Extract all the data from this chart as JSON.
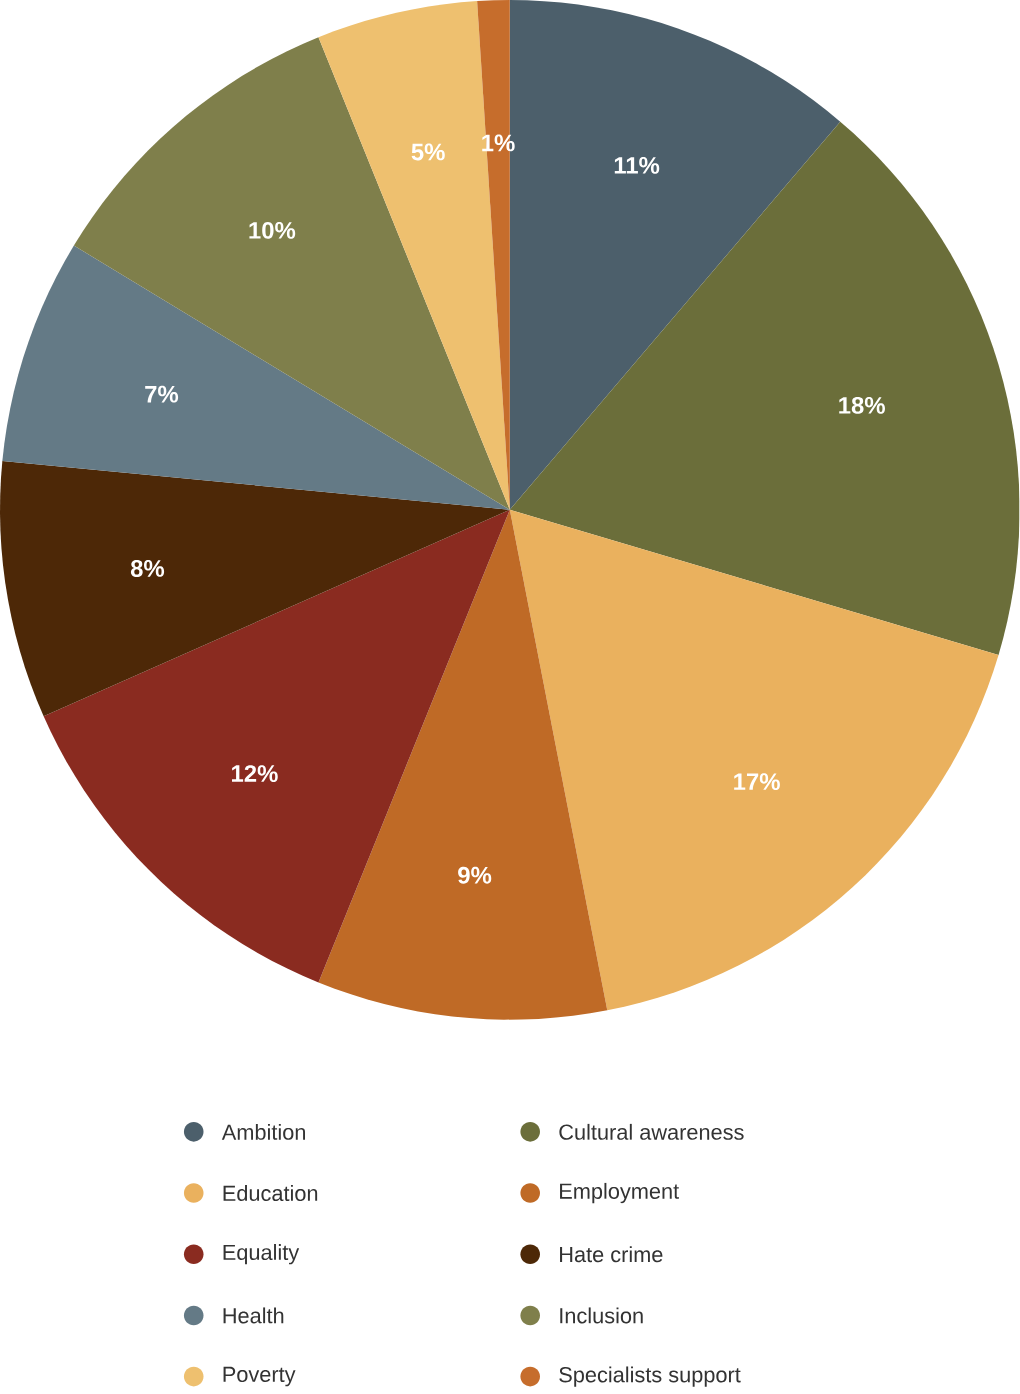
{
  "chart_data": {
    "type": "pie",
    "categories": [
      "Ambition",
      "Cultural awareness",
      "Education",
      "Employment",
      "Equality",
      "Hate crime",
      "Health",
      "Inclusion",
      "Poverty",
      "Specialists support"
    ],
    "values": [
      11,
      18,
      17,
      9,
      12,
      8,
      7,
      10,
      5,
      1
    ],
    "value_labels": [
      "11%",
      "18%",
      "17%",
      "9%",
      "12%",
      "8%",
      "7%",
      "10%",
      "5%",
      "1%"
    ],
    "colors": [
      "#4c5f6b",
      "#6b6e3a",
      "#eab15e",
      "#bf6a26",
      "#8a2b20",
      "#4d2807",
      "#647a86",
      "#7f7f4b",
      "#eec06f",
      "#c66d2c"
    ],
    "legend": "bottom"
  }
}
